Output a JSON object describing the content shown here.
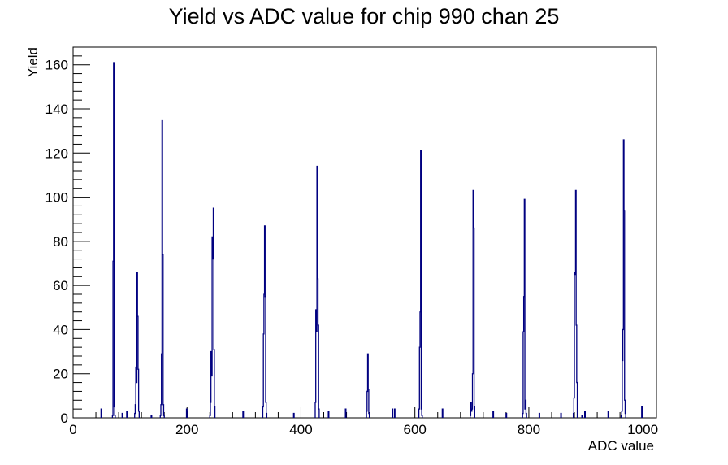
{
  "chart_data": {
    "type": "bar",
    "title": "Yield vs ADC value for chip 990 chan 25",
    "xlabel": "ADC value",
    "ylabel": "Yield",
    "xlim": [
      0,
      1024
    ],
    "ylim": [
      0,
      168
    ],
    "x_ticks": [
      0,
      200,
      400,
      600,
      800,
      1000
    ],
    "y_ticks": [
      0,
      20,
      40,
      60,
      80,
      100,
      120,
      140,
      160
    ],
    "line_color": "#000080",
    "grid": false,
    "legend": "none",
    "peaks": [
      {
        "x": [
          69,
          70,
          71,
          72,
          73
        ],
        "values": [
          1,
          71,
          161,
          5,
          1
        ]
      },
      {
        "x": [
          108,
          109,
          110,
          111,
          112,
          113,
          114,
          115
        ],
        "values": [
          2,
          6,
          23,
          16,
          66,
          46,
          22,
          3
        ]
      },
      {
        "x": [
          153,
          154,
          155,
          156,
          157,
          158,
          159
        ],
        "values": [
          1,
          6,
          29,
          135,
          74,
          6,
          1
        ]
      },
      {
        "x": [
          199,
          200
        ],
        "values": [
          4,
          3
        ]
      },
      {
        "x": [
          240,
          241,
          242,
          243,
          244,
          245,
          246,
          247,
          248
        ],
        "values": [
          1,
          7,
          30,
          19,
          82,
          72,
          95,
          31,
          5
        ]
      },
      {
        "x": [
          333,
          334,
          335,
          336,
          337,
          338,
          339
        ],
        "values": [
          5,
          38,
          56,
          87,
          55,
          7,
          2
        ]
      },
      {
        "x": [
          425,
          426,
          427,
          428,
          429,
          430,
          431
        ],
        "values": [
          7,
          49,
          39,
          114,
          63,
          42,
          4
        ]
      },
      {
        "x": [
          515,
          516,
          517,
          518,
          519
        ],
        "values": [
          3,
          12,
          29,
          13,
          2
        ]
      },
      {
        "x": [
          607,
          608,
          609,
          610,
          611,
          612
        ],
        "values": [
          4,
          32,
          48,
          121,
          4,
          1
        ]
      },
      {
        "x": [
          697,
          698,
          699,
          700,
          701,
          702,
          703,
          704
        ],
        "values": [
          1,
          7,
          3,
          4,
          20,
          103,
          86,
          5
        ]
      },
      {
        "x": [
          789,
          790,
          791,
          792,
          793,
          794,
          795
        ],
        "values": [
          2,
          39,
          55,
          99,
          4,
          8,
          2
        ]
      },
      {
        "x": [
          878,
          879,
          880,
          881,
          882,
          883,
          884
        ],
        "values": [
          2,
          9,
          66,
          65,
          103,
          42,
          16
        ]
      },
      {
        "x": [
          962,
          963,
          964,
          965,
          966,
          967,
          968,
          969
        ],
        "values": [
          1,
          3,
          26,
          40,
          126,
          94,
          8,
          2
        ]
      }
    ],
    "isolated_counts": {
      "x": [
        49,
        86,
        94,
        137,
        298,
        387,
        448,
        478,
        560,
        564,
        648,
        737,
        760,
        818,
        856,
        893,
        898,
        939,
        998
      ],
      "values": [
        4,
        2,
        3,
        1,
        3,
        2,
        3,
        4,
        4,
        4,
        4,
        3,
        2,
        2,
        2,
        1,
        3,
        3,
        5
      ]
    }
  }
}
